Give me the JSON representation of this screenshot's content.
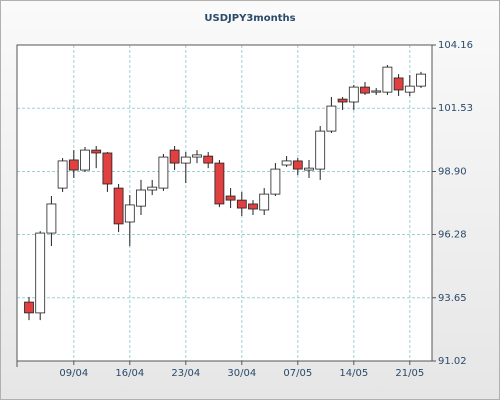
{
  "chart_data": {
    "type": "candlestick",
    "title": "USDJPY3months",
    "categories": [
      null,
      null,
      null,
      null,
      "09/04",
      null,
      null,
      null,
      null,
      "16/04",
      null,
      null,
      null,
      null,
      "23/04",
      null,
      null,
      null,
      null,
      "30/04",
      null,
      null,
      null,
      null,
      "07/05",
      null,
      null,
      null,
      null,
      "14/05",
      null,
      null,
      null,
      null,
      "21/05",
      null
    ],
    "open": [
      93.47,
      93.02,
      96.34,
      98.21,
      99.38,
      98.96,
      99.79,
      99.67,
      98.21,
      96.8,
      97.46,
      98.13,
      98.21,
      99.79,
      99.25,
      99.5,
      99.54,
      99.25,
      97.88,
      97.71,
      97.55,
      97.3,
      97.96,
      99.17,
      99.34,
      98.96,
      99.0,
      100.58,
      101.91,
      101.79,
      102.41,
      102.2,
      102.2,
      102.79,
      102.2,
      102.45
    ],
    "high": [
      93.68,
      96.42,
      97.88,
      99.46,
      99.79,
      99.92,
      99.96,
      99.71,
      98.38,
      97.92,
      98.55,
      98.55,
      99.63,
      99.96,
      99.71,
      99.79,
      99.71,
      99.38,
      98.21,
      98.05,
      97.71,
      98.21,
      99.25,
      99.54,
      99.46,
      99.38,
      100.79,
      102.0,
      102.0,
      102.5,
      102.62,
      102.37,
      103.33,
      102.95,
      102.91,
      103.04
    ],
    "low": [
      92.72,
      92.72,
      95.8,
      98.05,
      98.63,
      98.88,
      99.04,
      98.05,
      96.38,
      95.8,
      97.09,
      97.92,
      98.09,
      98.96,
      98.42,
      99.25,
      99.04,
      97.42,
      97.38,
      97.05,
      97.09,
      97.09,
      97.88,
      99.09,
      98.75,
      98.63,
      98.55,
      100.5,
      101.46,
      101.46,
      102.08,
      102.08,
      102.08,
      102.04,
      102.04,
      102.37
    ],
    "close": [
      93.02,
      96.34,
      97.55,
      99.34,
      98.96,
      99.79,
      99.67,
      98.38,
      96.72,
      97.51,
      98.13,
      98.25,
      99.5,
      99.25,
      99.5,
      99.59,
      99.25,
      97.55,
      97.71,
      97.38,
      97.34,
      97.96,
      99.0,
      99.34,
      99.0,
      99.04,
      100.58,
      101.62,
      101.79,
      102.41,
      102.16,
      102.25,
      103.24,
      102.29,
      102.45,
      102.95
    ],
    "up_color": "#ffffff",
    "down_color": "#e04040",
    "ylim": [
      91.02,
      104.16
    ],
    "yticks": [
      91.02,
      93.65,
      96.28,
      {
        "value": 98.9,
        "label": "98.90"
      },
      101.53,
      104.16
    ],
    "grid": true
  }
}
